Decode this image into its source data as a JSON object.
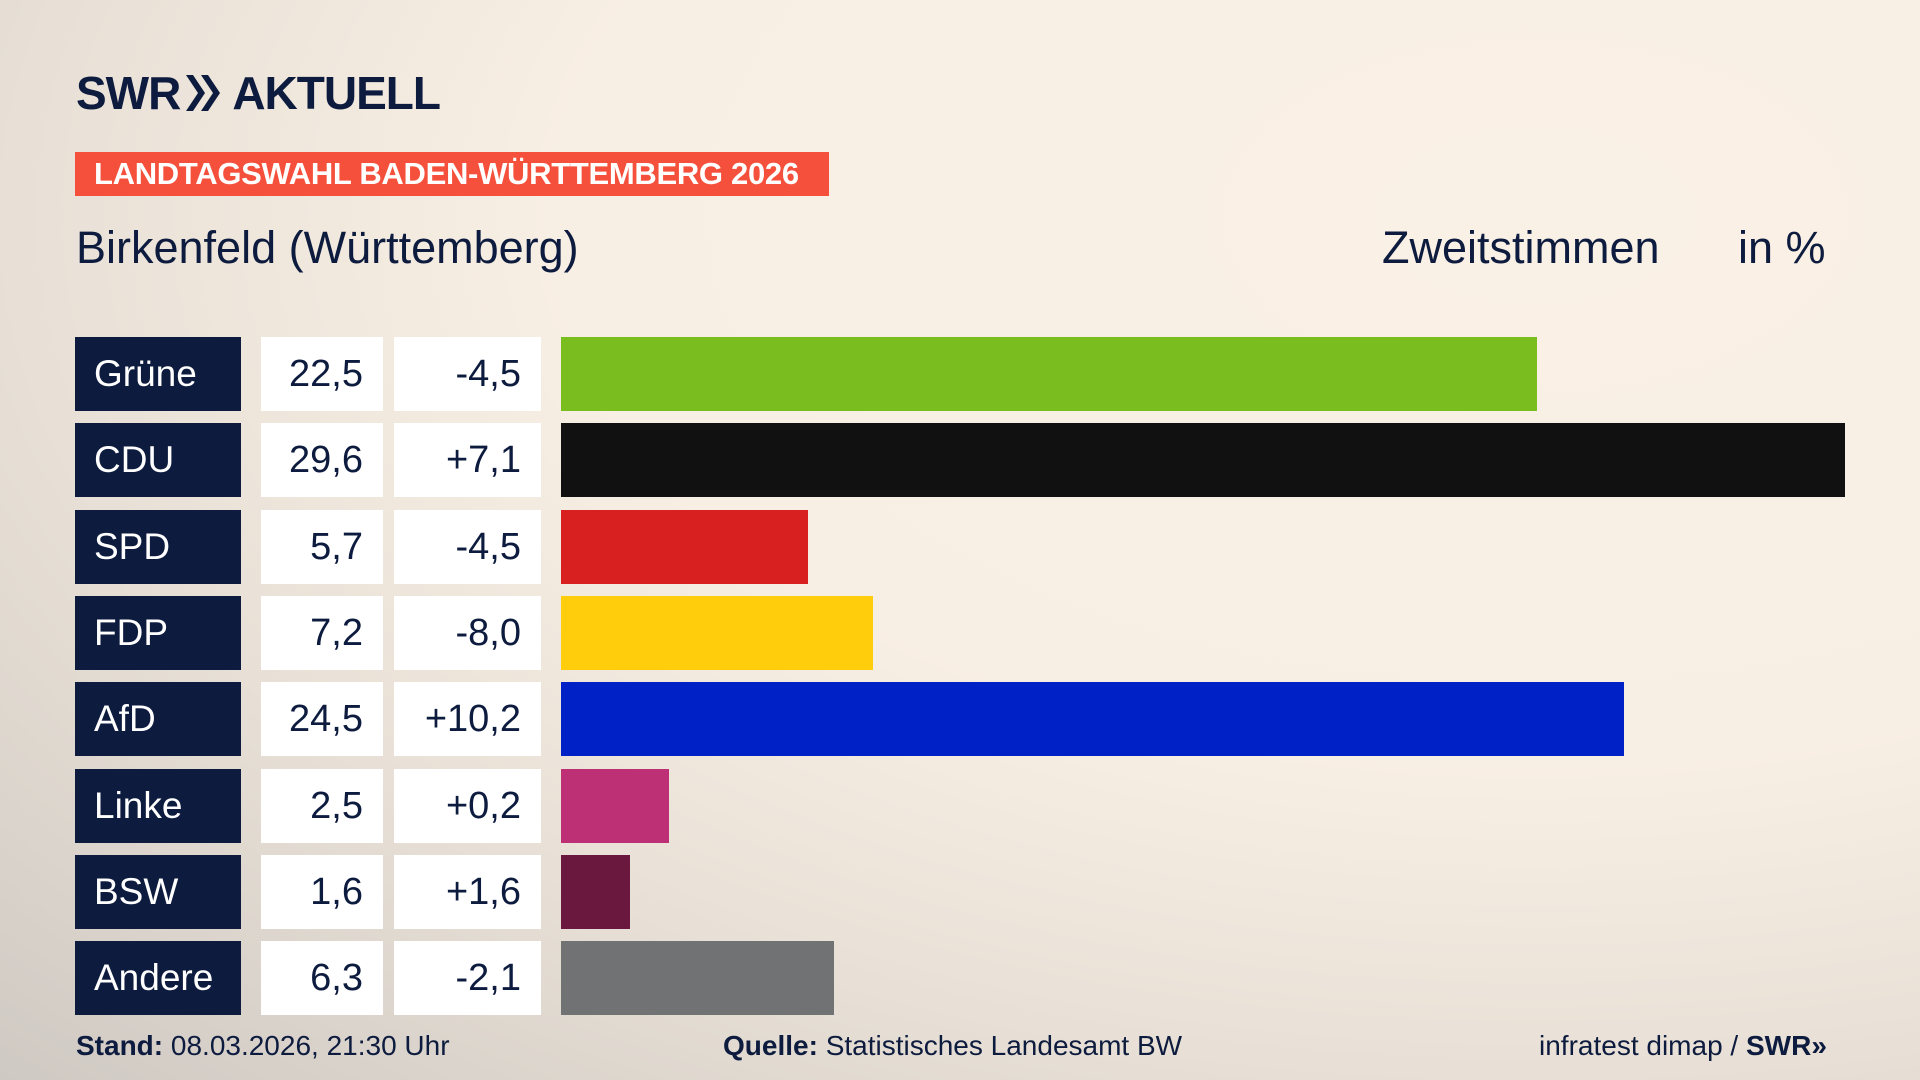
{
  "logo": {
    "brand": "SWR",
    "product": "AKTUELL"
  },
  "badge": "LANDTAGSWAHL BADEN-WÜRTTEMBERG 2026",
  "region": "Birkenfeld (Württemberg)",
  "measure": "Zweitstimmen",
  "unit": "in %",
  "colors": {
    "text": "#0d1b3e",
    "badge": "#f5503c"
  },
  "chart_data": {
    "type": "bar",
    "orientation": "horizontal",
    "categories": [
      "Grüne",
      "CDU",
      "SPD",
      "FDP",
      "AfD",
      "Linke",
      "BSW",
      "Andere"
    ],
    "values": [
      "22,5",
      "29,6",
      "5,7",
      "7,2",
      "24,5",
      "2,5",
      "1,6",
      "6,3"
    ],
    "numeric_values": [
      22.5,
      29.6,
      5.7,
      7.2,
      24.5,
      2.5,
      1.6,
      6.3
    ],
    "changes": [
      "-4,5",
      "+7,1",
      "-4,5",
      "-8,0",
      "+10,2",
      "+0,2",
      "+1,6",
      "-2,1"
    ],
    "colors": [
      "#7abd1e",
      "#111111",
      "#d7201f",
      "#ffcd0b",
      "#0021c6",
      "#be3075",
      "#6a183d",
      "#717273"
    ],
    "xlim": [
      0,
      29.6
    ]
  },
  "footer": {
    "stand_label": "Stand:",
    "stand_value": "08.03.2026, 21:30 Uhr",
    "source_label": "Quelle:",
    "source_value": "Statistisches Landesamt BW",
    "credit": "infratest dimap /",
    "credit_brand": "SWR"
  }
}
